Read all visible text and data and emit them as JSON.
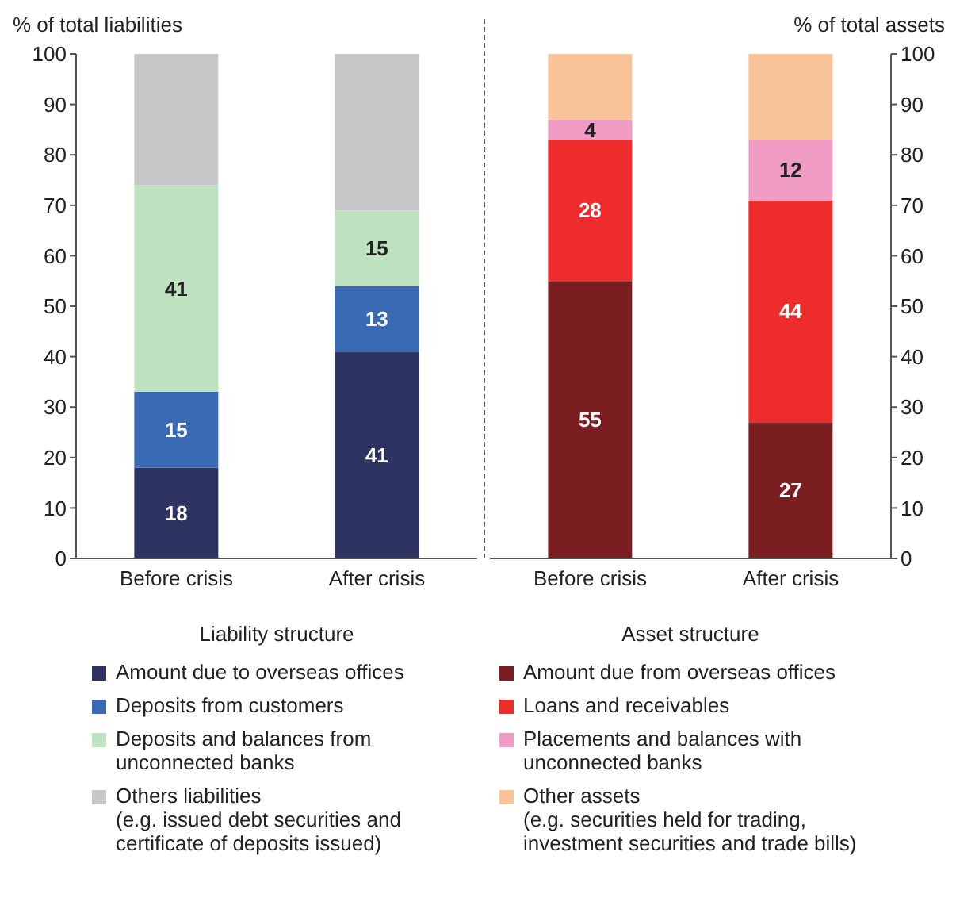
{
  "chart_data": [
    {
      "type": "bar",
      "stacked": true,
      "ylabel": "% of total liabilities",
      "xlabel": "Liability structure",
      "categories": [
        "Before crisis",
        "After crisis"
      ],
      "ylim": [
        0,
        100
      ],
      "yticks": [
        0,
        10,
        20,
        30,
        40,
        50,
        60,
        70,
        80,
        90,
        100
      ],
      "legend": "bottom",
      "series": [
        {
          "name": "Amount due to overseas offices",
          "color": "#2e3462",
          "values": [
            18,
            41
          ],
          "value_labels": [
            "18",
            "41"
          ]
        },
        {
          "name": "Deposits from customers",
          "color": "#3a6ab4",
          "values": [
            15,
            13
          ],
          "value_labels": [
            "15",
            "13"
          ]
        },
        {
          "name": "Deposits and balances from unconnected banks",
          "color": "#bfe2c0",
          "values": [
            41,
            15
          ],
          "value_labels": [
            "41",
            "15"
          ]
        },
        {
          "name": "Others liabilities\n(e.g. issued debt securities and certificate of deposits issued)",
          "color": "#c8c8ca",
          "values": [
            26,
            31
          ],
          "value_labels": [
            null,
            null
          ]
        }
      ]
    },
    {
      "type": "bar",
      "stacked": true,
      "y2label": "% of total assets",
      "xlabel": "Asset structure",
      "categories": [
        "Before crisis",
        "After crisis"
      ],
      "y2lim": [
        0,
        100
      ],
      "y2ticks": [
        0,
        10,
        20,
        30,
        40,
        50,
        60,
        70,
        80,
        90,
        100
      ],
      "legend": "bottom",
      "series": [
        {
          "name": "Amount due from overseas offices",
          "color": "#7a1e22",
          "axis": "y2",
          "values": [
            55,
            27
          ],
          "value_labels": [
            "55",
            "27"
          ]
        },
        {
          "name": "Loans and receivables",
          "color": "#ee2c2c",
          "axis": "y2",
          "values": [
            28,
            44
          ],
          "value_labels": [
            "28",
            "44"
          ]
        },
        {
          "name": "Placements and balances with unconnected banks",
          "color": "#f09cc4",
          "axis": "y2",
          "values": [
            4,
            12
          ],
          "value_labels": [
            "4",
            "12"
          ]
        },
        {
          "name": "Other assets\n(e.g. securities held for trading, investment securities and trade bills)",
          "color": "#f9c49a",
          "axis": "y2",
          "values": [
            13,
            17
          ],
          "value_labels": [
            null,
            null
          ]
        }
      ]
    }
  ]
}
